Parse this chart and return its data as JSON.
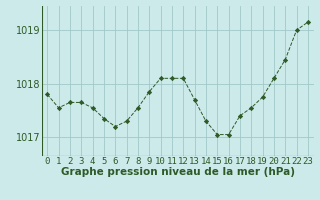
{
  "x": [
    0,
    1,
    2,
    3,
    4,
    5,
    6,
    7,
    8,
    9,
    10,
    11,
    12,
    13,
    14,
    15,
    16,
    17,
    18,
    19,
    20,
    21,
    22,
    23
  ],
  "y": [
    1017.8,
    1017.55,
    1017.65,
    1017.65,
    1017.55,
    1017.35,
    1017.2,
    1017.3,
    1017.55,
    1017.85,
    1018.1,
    1018.1,
    1018.1,
    1017.7,
    1017.3,
    1017.05,
    1017.05,
    1017.4,
    1017.55,
    1017.75,
    1018.1,
    1018.45,
    1019.0,
    1019.15
  ],
  "line_color": "#2d5a27",
  "marker": "D",
  "marker_size": 2.2,
  "bg_color": "#cceaea",
  "grid_color": "#a0c8c8",
  "xlabel": "Graphe pression niveau de la mer (hPa)",
  "xlabel_fontsize": 7.5,
  "tick_fontsize": 6.5,
  "ytick_fontsize": 7,
  "yticks": [
    1017,
    1018,
    1019
  ],
  "ylim": [
    1016.65,
    1019.45
  ],
  "xlim": [
    -0.5,
    23.5
  ]
}
